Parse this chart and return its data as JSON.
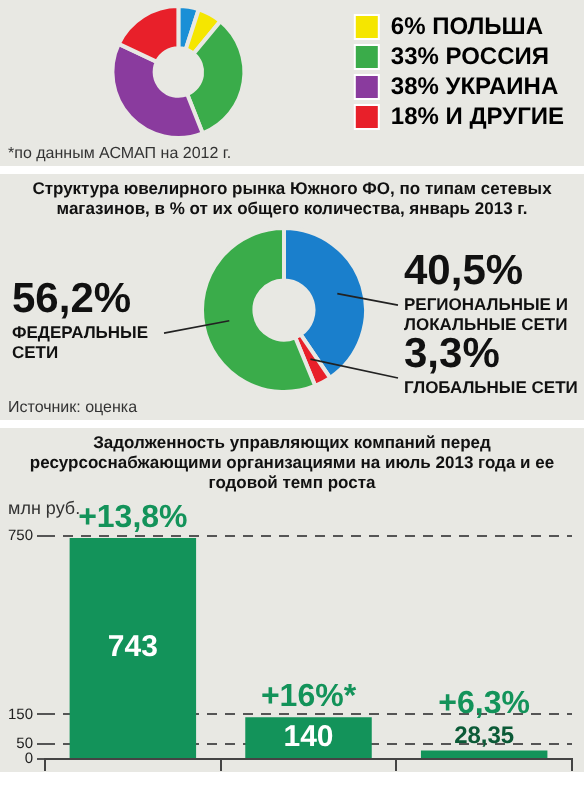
{
  "chart_data": [
    {
      "type": "donut",
      "categories": [
        null,
        "ПОЛЬША",
        "РОССИЯ",
        "УКРАИНА",
        "И ДРУГИЕ"
      ],
      "values": [
        5,
        6,
        33,
        38,
        18
      ],
      "value_labels": [
        null,
        "6%",
        "33%",
        "38%",
        "18%"
      ],
      "colors": [
        "#1a8fd6",
        "#f5e600",
        "#3aac4a",
        "#8a3b9e",
        "#e8202a"
      ],
      "legend": "right",
      "annotations": [
        "*по данным АСМАП на 2012 г."
      ]
    },
    {
      "type": "donut",
      "title": "Структура ювелирного рынка Южного ФО, по типам сетевых магазинов, в % от их общего количества, январь 2013 г.",
      "categories": [
        "РЕГИОНАЛЬНЫЕ И ЛОКАЛЬНЫЕ СЕТИ",
        "ГЛОБАЛЬНЫЕ СЕТИ",
        "ФЕДЕРАЛЬНЫЕ СЕТИ"
      ],
      "values": [
        40.5,
        3.3,
        56.2
      ],
      "value_labels": [
        "40,5%",
        "3,3%",
        "56,2%"
      ],
      "colors": [
        "#1a7fcc",
        "#e8202a",
        "#3aac4a"
      ],
      "annotations": [
        "Источник: оценка"
      ]
    },
    {
      "type": "bar",
      "title": "Задолженность управляющих компаний перед ресурсоснабжающими организациями на июль 2013 года и ее годовой темп роста",
      "ylabel": "млн руб.",
      "categories": [
        null,
        null,
        null
      ],
      "values": [
        743,
        140,
        28.35
      ],
      "value_labels": [
        "743",
        "140",
        "28,35"
      ],
      "color": "#13935a",
      "ylim": [
        0,
        750
      ],
      "yticks": [
        0,
        50,
        150,
        750
      ],
      "grid": "y",
      "annotations": [
        "+13,8%",
        "+16%*",
        "+6,3%"
      ]
    }
  ]
}
